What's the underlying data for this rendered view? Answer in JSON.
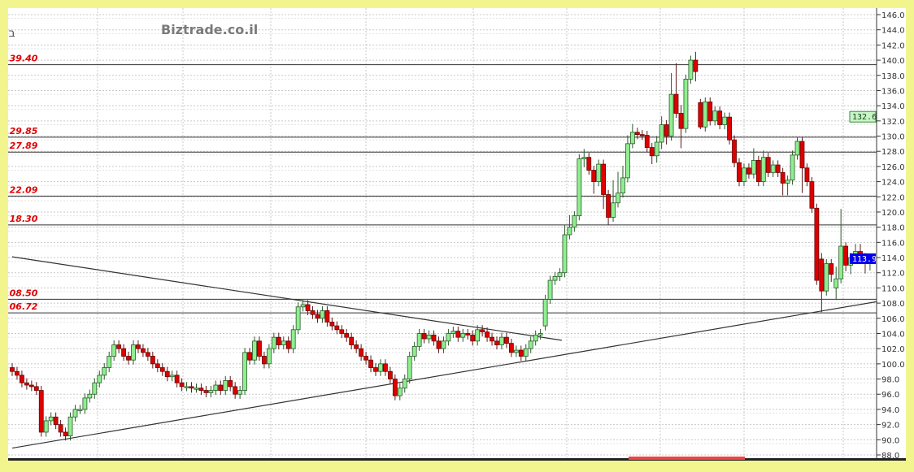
{
  "header": {
    "symbol": "בזן",
    "watermark": "Biztrade.co.il"
  },
  "chart_data": {
    "type": "candlestick",
    "ylim": [
      88,
      146
    ],
    "y_ticks": [
      "146.0",
      "144.0",
      "142.0",
      "140.0",
      "138.0",
      "136.0",
      "134.0",
      "132.0",
      "130.0",
      "128.0",
      "126.0",
      "124.0",
      "122.0",
      "120.0",
      "118.0",
      "116.0",
      "114.0",
      "112.0",
      "110.0",
      "108.0",
      "106.0",
      "104.0",
      "102.0",
      "100.0",
      "98.0",
      "96.0",
      "94.0",
      "92.0",
      "90.0",
      "88.0"
    ],
    "grid": true,
    "colors": {
      "up": "#90ee90",
      "down": "#dd0000",
      "outline": "#1a3a1a",
      "level_label": "#e00000",
      "last_price_bg": "#0000ee",
      "marker_bg": "#c8f5c8"
    },
    "levels": [
      "139.40",
      "129.85",
      "127.89",
      "122.09",
      "118.30",
      "108.50",
      "106.72"
    ],
    "markers": {
      "upper": "132.6",
      "last": "113.9"
    },
    "trendlines": [
      {
        "from": [
          0,
          114.1
        ],
        "to": [
          113.4,
          103.1
        ]
      },
      {
        "from": [
          0,
          88.9
        ],
        "to": [
          179.4,
          108.3
        ]
      }
    ],
    "candles": [
      [
        99.5,
        100.1,
        98.4,
        99
      ],
      [
        99,
        99.6,
        97.9,
        98.5
      ],
      [
        98.5,
        99.1,
        96.9,
        97.5
      ],
      [
        97.5,
        98.1,
        96.6,
        97.2
      ],
      [
        97.2,
        97.8,
        96.4,
        97
      ],
      [
        97,
        97.6,
        95.9,
        96.5
      ],
      [
        96.5,
        97.1,
        90.4,
        91
      ],
      [
        91,
        93.1,
        90.4,
        92.5
      ],
      [
        92.5,
        93.6,
        91.9,
        93
      ],
      [
        93,
        93.6,
        91.4,
        92
      ],
      [
        92,
        92.6,
        90.4,
        91
      ],
      [
        91,
        91.6,
        89.9,
        90.5
      ],
      [
        90.5,
        93.6,
        89.9,
        93
      ],
      [
        93,
        94.6,
        92.4,
        94
      ],
      [
        94,
        94.6,
        93.4,
        94
      ],
      [
        94,
        96.1,
        93.4,
        95.5
      ],
      [
        95.5,
        96.6,
        94.9,
        96
      ],
      [
        96,
        98.1,
        95.4,
        97.5
      ],
      [
        97.5,
        99.1,
        96.9,
        98.5
      ],
      [
        98.5,
        100.1,
        97.9,
        99.5
      ],
      [
        99.5,
        101.6,
        98.9,
        101
      ],
      [
        101,
        103.1,
        100.4,
        102.5
      ],
      [
        102.5,
        103.1,
        101.4,
        102
      ],
      [
        102,
        102.6,
        100.4,
        101
      ],
      [
        101,
        101.6,
        99.9,
        100.5
      ],
      [
        100.5,
        103.1,
        99.9,
        102.5
      ],
      [
        102.5,
        103.1,
        101.4,
        102
      ],
      [
        102,
        102.6,
        100.9,
        101.5
      ],
      [
        101.5,
        102.1,
        100.4,
        101
      ],
      [
        101,
        101.6,
        99.4,
        100
      ],
      [
        100,
        100.6,
        98.9,
        99.5
      ],
      [
        99.5,
        100.1,
        98.4,
        99
      ],
      [
        99,
        99.6,
        97.7,
        98.3
      ],
      [
        98.3,
        99.1,
        97.7,
        98.5
      ],
      [
        98.5,
        99.1,
        96.9,
        97.5
      ],
      [
        97.5,
        98.1,
        96.4,
        97
      ],
      [
        97,
        97.6,
        96.4,
        97
      ],
      [
        97,
        97.6,
        96.2,
        96.8
      ],
      [
        96.8,
        97.4,
        96.2,
        96.8
      ],
      [
        96.8,
        97.4,
        95.9,
        96.5
      ],
      [
        96.5,
        97.1,
        95.6,
        96.2
      ],
      [
        96.2,
        97.1,
        95.6,
        96.5
      ],
      [
        96.5,
        97.8,
        95.9,
        97.2
      ],
      [
        97.2,
        97.8,
        95.9,
        96.5
      ],
      [
        96.5,
        98.4,
        95.9,
        97.8
      ],
      [
        97.8,
        98.4,
        96.4,
        97
      ],
      [
        97,
        97.6,
        95.4,
        96
      ],
      [
        96,
        97.1,
        95.4,
        96.5
      ],
      [
        96.5,
        102.1,
        95.9,
        101.5
      ],
      [
        101.5,
        102.1,
        99.9,
        100.5
      ],
      [
        100.5,
        103.6,
        99.9,
        103
      ],
      [
        103,
        103.6,
        100.4,
        101
      ],
      [
        101,
        101.6,
        99.4,
        100
      ],
      [
        100,
        102.6,
        99.4,
        102
      ],
      [
        102,
        104.1,
        101.4,
        103.5
      ],
      [
        103.5,
        104.1,
        101.9,
        102.5
      ],
      [
        102.5,
        103.6,
        101.9,
        103
      ],
      [
        103,
        103.6,
        101.4,
        102
      ],
      [
        102,
        105.1,
        101.4,
        104.5
      ],
      [
        104.5,
        108.1,
        103.9,
        107.5
      ],
      [
        107.5,
        108.4,
        106.9,
        107.8
      ],
      [
        107.8,
        108.4,
        106.4,
        107
      ],
      [
        107,
        107.6,
        105.9,
        106.5
      ],
      [
        106.5,
        107.1,
        105.4,
        106
      ],
      [
        106,
        107.6,
        105.4,
        107
      ],
      [
        107,
        107.6,
        104.9,
        105.5
      ],
      [
        105.5,
        106.1,
        104.4,
        105
      ],
      [
        105,
        105.6,
        103.9,
        104.5
      ],
      [
        104.5,
        105.1,
        103.4,
        104
      ],
      [
        104,
        104.6,
        102.9,
        103.5
      ],
      [
        103.5,
        104.1,
        101.9,
        102.5
      ],
      [
        102.5,
        103.1,
        101.4,
        102
      ],
      [
        102,
        102.6,
        100.4,
        101
      ],
      [
        101,
        101.6,
        99.9,
        100.5
      ],
      [
        100.5,
        101.1,
        98.9,
        99.5
      ],
      [
        99.5,
        100.1,
        98.4,
        99
      ],
      [
        99,
        100.6,
        98.4,
        100
      ],
      [
        100,
        100.6,
        98.4,
        99
      ],
      [
        99,
        99.6,
        97.4,
        98
      ],
      [
        98,
        98.6,
        95.2,
        95.8
      ],
      [
        95.8,
        97.4,
        95.2,
        96.8
      ],
      [
        96.8,
        98.6,
        96.2,
        98
      ],
      [
        98,
        101.6,
        97.4,
        101
      ],
      [
        101,
        102.9,
        100.4,
        102.3
      ],
      [
        102.3,
        104.6,
        101.7,
        104
      ],
      [
        104,
        104.6,
        102.7,
        103.3
      ],
      [
        103.3,
        104.4,
        102.7,
        103.8
      ],
      [
        103.8,
        104.4,
        102.4,
        103
      ],
      [
        103,
        103.6,
        101.4,
        102
      ],
      [
        102,
        103.6,
        101.4,
        103
      ],
      [
        103,
        104.6,
        102.4,
        104
      ],
      [
        104,
        104.9,
        103.4,
        104.3
      ],
      [
        104.3,
        104.9,
        102.9,
        103.5
      ],
      [
        103.5,
        104.6,
        102.9,
        104
      ],
      [
        104,
        104.6,
        103.2,
        103.8
      ],
      [
        103.8,
        104.4,
        102.4,
        103
      ],
      [
        103,
        105.1,
        102.4,
        104.5
      ],
      [
        104.5,
        105.1,
        103.6,
        104.2
      ],
      [
        104.2,
        104.8,
        102.9,
        103.5
      ],
      [
        103.5,
        104.1,
        102.4,
        103
      ],
      [
        103,
        103.6,
        101.9,
        102.5
      ],
      [
        102.5,
        104.1,
        101.9,
        103.5
      ],
      [
        103.5,
        104.1,
        102.1,
        102.7
      ],
      [
        102.7,
        103.3,
        100.9,
        101.5
      ],
      [
        101.5,
        102.4,
        100.9,
        101.8
      ],
      [
        101.8,
        102.4,
        100.4,
        101
      ],
      [
        101,
        102.6,
        100.4,
        102
      ],
      [
        102,
        103.6,
        101.4,
        103
      ],
      [
        103,
        104.4,
        102.4,
        103.8
      ],
      [
        103.8,
        104.6,
        103.2,
        104
      ],
      [
        105,
        109.1,
        104.4,
        108.5
      ],
      [
        108.5,
        111.6,
        107.9,
        111
      ],
      [
        111,
        112.1,
        110.4,
        111.5
      ],
      [
        111.5,
        112.6,
        110.9,
        112
      ],
      [
        112,
        118.3,
        111.4,
        117
      ],
      [
        117,
        119.6,
        116.4,
        118
      ],
      [
        118,
        120.1,
        117.4,
        119.5
      ],
      [
        119.5,
        127.6,
        118.9,
        127
      ],
      [
        127,
        128.3,
        125.9,
        127.2
      ],
      [
        127.2,
        127.8,
        124.9,
        125.5
      ],
      [
        125.5,
        126.1,
        122.4,
        124
      ],
      [
        124,
        126.9,
        123.4,
        126.3
      ],
      [
        126.3,
        126.9,
        120.4,
        122.3
      ],
      [
        122.3,
        122.9,
        118.3,
        119.3
      ],
      [
        119.3,
        124.2,
        118.7,
        121.2
      ],
      [
        121.2,
        125.3,
        120.6,
        122.5
      ],
      [
        122.5,
        126.1,
        121.9,
        124.5
      ],
      [
        124.5,
        130.1,
        123.9,
        129
      ],
      [
        129,
        131.6,
        128.4,
        130.5
      ],
      [
        130.5,
        131.1,
        129.6,
        130.2
      ],
      [
        130.2,
        130.8,
        129.5,
        130.1
      ],
      [
        130.1,
        130.7,
        127.9,
        128.5
      ],
      [
        128.5,
        129.1,
        126.3,
        127.4
      ],
      [
        127.4,
        130,
        126.5,
        129.2
      ],
      [
        129.2,
        132.6,
        128.3,
        131.5
      ],
      [
        131.5,
        132.1,
        128.9,
        130
      ],
      [
        130,
        138.3,
        129.4,
        135.5
      ],
      [
        135.5,
        139.6,
        132.4,
        133
      ],
      [
        133,
        134.1,
        128.4,
        131
      ],
      [
        131,
        138.1,
        130.4,
        137.5
      ],
      [
        137.5,
        140.6,
        136.9,
        140
      ],
      [
        140,
        141.1,
        137.2,
        138.5
      ],
      [
        134.4,
        134.9,
        130.9,
        131.2
      ],
      [
        131.2,
        135.1,
        130.6,
        134.5
      ],
      [
        134.5,
        135.1,
        131.4,
        132
      ],
      [
        132,
        133.9,
        131.4,
        133.3
      ],
      [
        133.3,
        133.9,
        130.9,
        131.5
      ],
      [
        131.5,
        133.1,
        130.9,
        132.5
      ],
      [
        132.5,
        133.1,
        128.9,
        129.5
      ],
      [
        129.5,
        130.1,
        125.9,
        126.5
      ],
      [
        126.5,
        127.1,
        123.4,
        124
      ],
      [
        124,
        126.4,
        123.4,
        125.8
      ],
      [
        125.8,
        126.4,
        124.4,
        125
      ],
      [
        125,
        128.4,
        124.4,
        126.8
      ],
      [
        126.8,
        127.4,
        123.4,
        124
      ],
      [
        124,
        128.1,
        123.4,
        127.2
      ],
      [
        127.2,
        127.8,
        124.6,
        125.2
      ],
      [
        125.2,
        126.8,
        124.6,
        126.2
      ],
      [
        126.2,
        126.8,
        124.6,
        125.2
      ],
      [
        125.2,
        125.8,
        122.2,
        123.8
      ],
      [
        123.8,
        124.8,
        122.2,
        124.2
      ],
      [
        124.2,
        128.1,
        123.6,
        127.5
      ],
      [
        127.5,
        129.9,
        126.9,
        129.3
      ],
      [
        129.3,
        129.9,
        122.5,
        125.8
      ],
      [
        125.8,
        126.4,
        123.4,
        124
      ],
      [
        124,
        124.6,
        119.9,
        120.5
      ],
      [
        120.5,
        121.1,
        110.4,
        111
      ],
      [
        113.8,
        114.6,
        106.8,
        109.6
      ],
      [
        109.6,
        113.8,
        109,
        113.2
      ],
      [
        113.2,
        113.8,
        110.8,
        111.8
      ],
      [
        110,
        112.8,
        108.4,
        111.2
      ],
      [
        111.2,
        120.4,
        110.6,
        115.5
      ],
      [
        115.5,
        116,
        112.2,
        113
      ],
      [
        113,
        114.6,
        111.8,
        114
      ],
      [
        114,
        115.8,
        113.2,
        114.8
      ],
      [
        114.8,
        115.8,
        113.4,
        114.1
      ],
      [
        114.1,
        114.6,
        111.9,
        114
      ],
      [
        113.9,
        114.5,
        112.3,
        113.9
      ]
    ]
  }
}
